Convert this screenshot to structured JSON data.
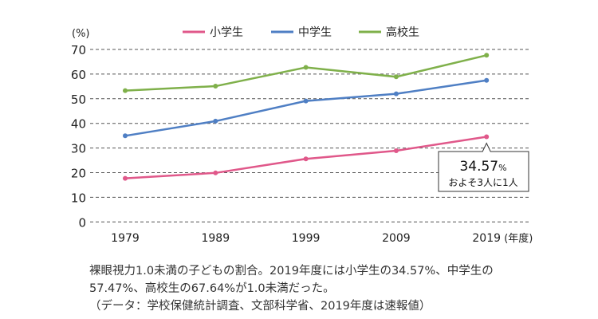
{
  "chart_data": {
    "type": "line",
    "ylabel": "(%)",
    "xlabel_suffix": "(年度)",
    "categories": [
      "1979",
      "1989",
      "1999",
      "2009",
      "2019"
    ],
    "ylim": [
      0,
      70
    ],
    "yticks": [
      0,
      10,
      20,
      30,
      40,
      50,
      60,
      70
    ],
    "grid": true,
    "legend": "top",
    "series": [
      {
        "name": "小学生",
        "color": "#e0588a",
        "values": [
          17.7,
          19.9,
          25.6,
          28.9,
          34.57
        ]
      },
      {
        "name": "中学生",
        "color": "#4f7fc4",
        "values": [
          34.95,
          40.9,
          49.1,
          52.0,
          57.47
        ]
      },
      {
        "name": "高校生",
        "color": "#7fb04a",
        "values": [
          53.3,
          55.1,
          62.7,
          58.9,
          67.64
        ]
      }
    ],
    "annotation": {
      "value": "34.57",
      "unit": "%",
      "note": "およそ3人に1人"
    }
  },
  "caption": {
    "line1": "裸眼視力1.0未満の子どもの割合。2019年度には小学生の34.57%、中学生の",
    "line2": "57.47%、高校生の67.64%が1.0未満だった。",
    "line3": "（データ：学校保健統計調査、文部科学省、2019年度は速報値）"
  }
}
